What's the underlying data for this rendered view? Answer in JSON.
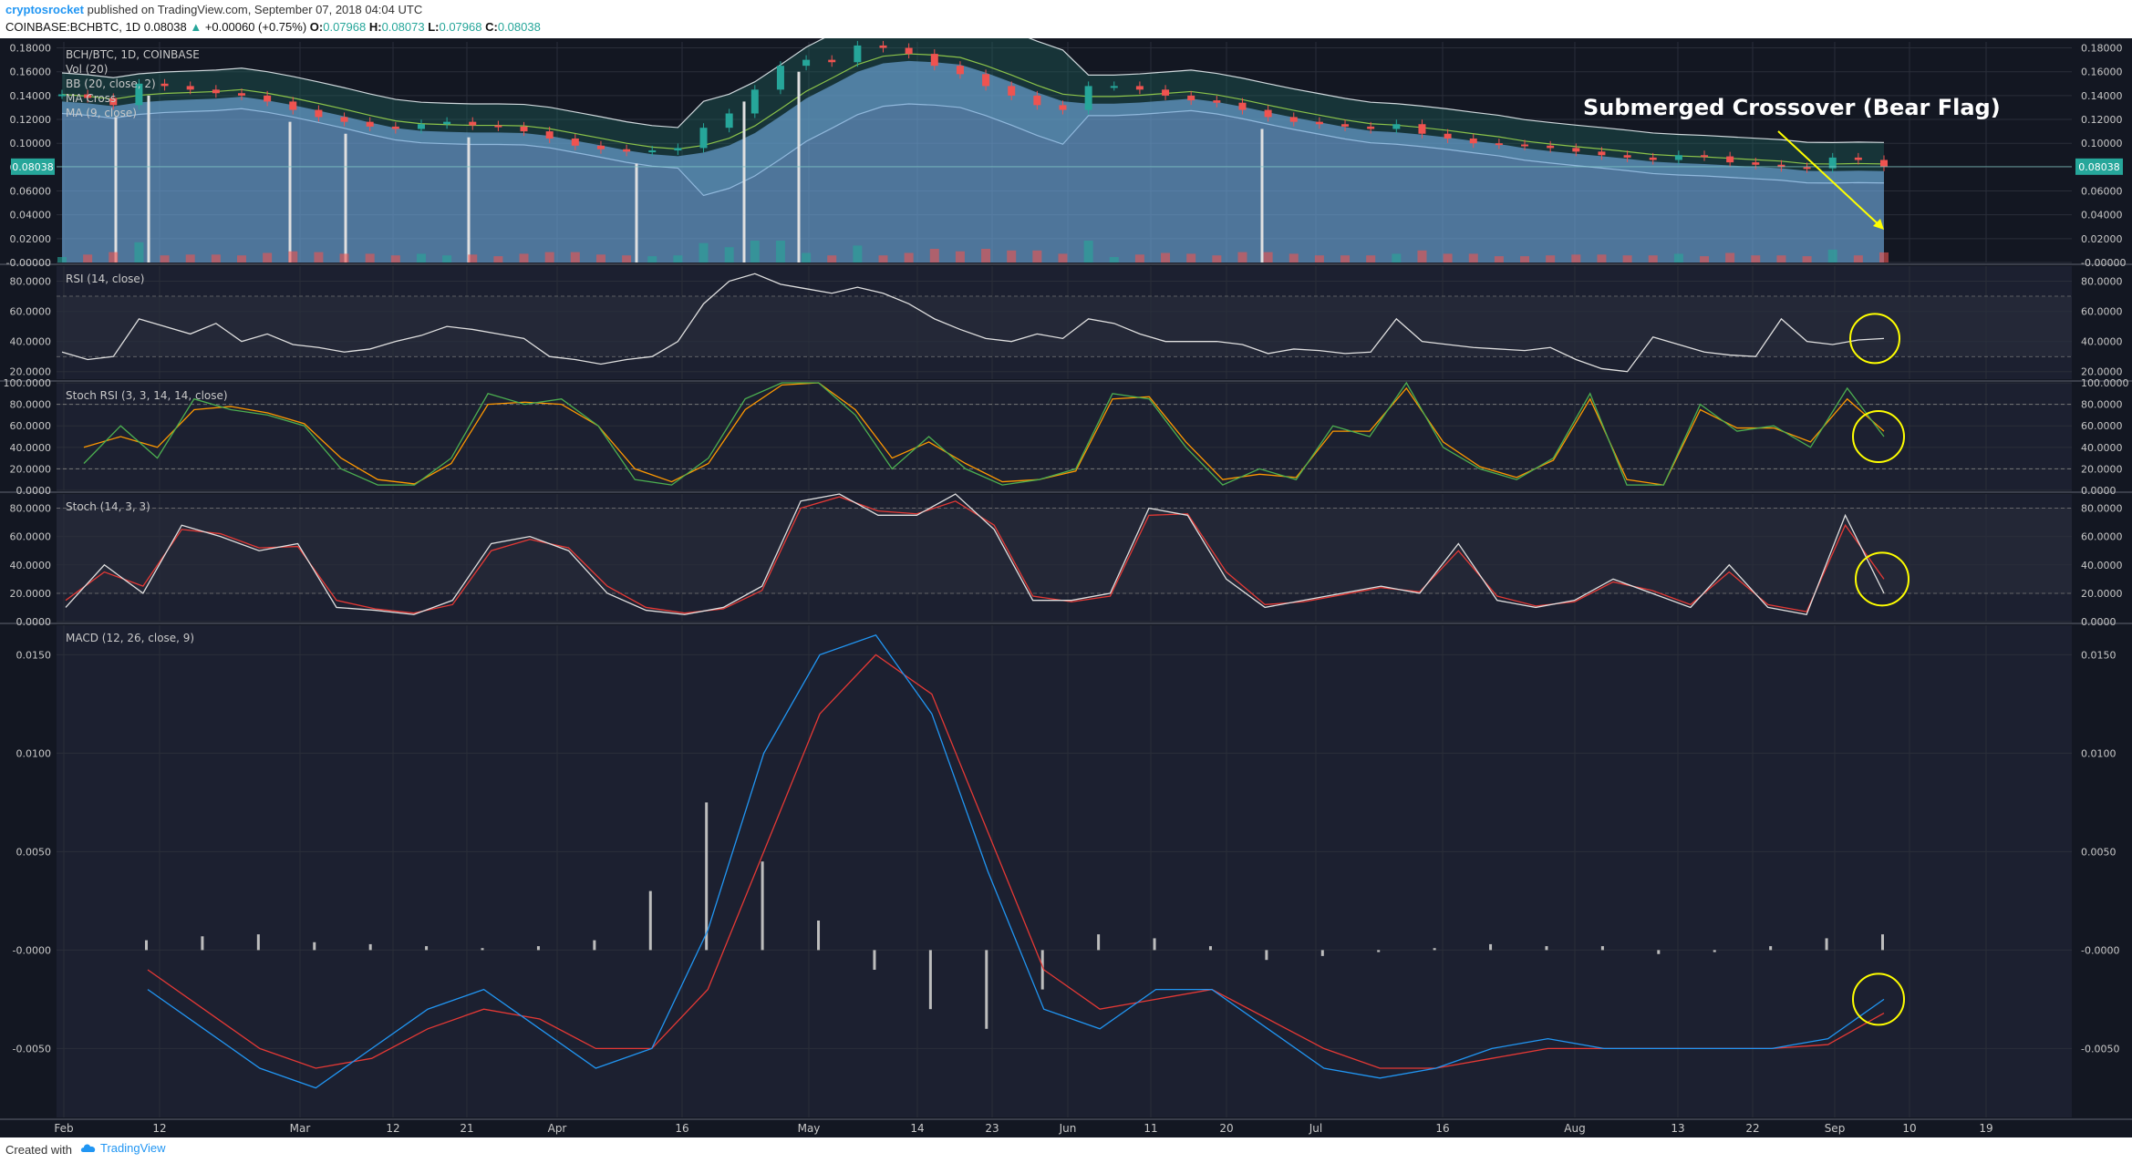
{
  "header": {
    "author": "cryptosrocket",
    "published_text": "published on TradingView.com, September 07, 2018 04:04 UTC",
    "symbol": "COINBASE:BCHBTC, 1D",
    "last": "0.08038",
    "change": "+0.00060 (+0.75%)",
    "o_label": "O:",
    "o_value": "0.07968",
    "h_label": "H:",
    "h_value": "0.08073",
    "l_label": "L:",
    "l_value": "0.07968",
    "c_label": "C:",
    "c_value": "0.08038"
  },
  "footer": {
    "created_with": "Created with",
    "brand": "TradingView"
  },
  "colors": {
    "background": "#131722",
    "pane_bg": "#1c2030",
    "grid": "#2a2e39",
    "text": "#c8c8c8",
    "up": "#26a69a",
    "down": "#ef5350",
    "bb_fill": "#6fa8dc",
    "rsi": "#e0e0e0",
    "stoch_k": "#4caf50",
    "stoch_d": "#ff9800",
    "macd": "#2196f3",
    "signal": "#e53935",
    "annotation": "#ffff00",
    "price_tag": "#26a69a"
  },
  "chart_data": [
    {
      "type": "candlestick",
      "title": "BCH/BTC, 1D, COINBASE",
      "legend": [
        "Vol (20)",
        "BB (20, close, 2)",
        "MA Cross",
        "MA (9, close)"
      ],
      "x_labels": [
        "Feb",
        "12",
        "Mar",
        "12",
        "21",
        "Apr",
        "16",
        "May",
        "14",
        "23",
        "Jun",
        "11",
        "20",
        "Jul",
        "16",
        "Aug",
        "13",
        "22",
        "Sep",
        "10",
        "19"
      ],
      "y_ticks": [
        "0.18000",
        "0.16000",
        "0.14000",
        "0.12000",
        "0.10000",
        "0.08000",
        "0.06000",
        "0.04000",
        "0.02000",
        "-0.00000"
      ],
      "ylim": [
        0,
        0.185
      ],
      "last_price": "0.08038",
      "close_series": [
        0.141,
        0.138,
        0.132,
        0.15,
        0.148,
        0.145,
        0.142,
        0.14,
        0.135,
        0.128,
        0.122,
        0.118,
        0.114,
        0.112,
        0.116,
        0.118,
        0.115,
        0.114,
        0.11,
        0.104,
        0.098,
        0.095,
        0.093,
        0.094,
        0.096,
        0.113,
        0.125,
        0.145,
        0.165,
        0.17,
        0.168,
        0.182,
        0.18,
        0.175,
        0.165,
        0.158,
        0.148,
        0.14,
        0.132,
        0.128,
        0.148,
        0.148,
        0.145,
        0.14,
        0.136,
        0.134,
        0.128,
        0.122,
        0.118,
        0.116,
        0.114,
        0.112,
        0.116,
        0.108,
        0.104,
        0.1,
        0.099,
        0.098,
        0.096,
        0.093,
        0.09,
        0.088,
        0.086,
        0.09,
        0.089,
        0.084,
        0.082,
        0.08,
        0.079,
        0.088,
        0.086,
        0.0804
      ],
      "volume_note": "Vol (20) histogram in bottom of price pane",
      "annotations": [
        {
          "text": "Submerged Crossover (Bear Flag)"
        }
      ]
    },
    {
      "type": "line",
      "title": "RSI (14, close)",
      "y_ticks": [
        "80.0000",
        "60.0000",
        "40.0000",
        "20.0000"
      ],
      "ylim": [
        15,
        90
      ],
      "bands": [
        70,
        30
      ],
      "series": [
        {
          "values": [
            33,
            28,
            30,
            55,
            50,
            45,
            52,
            40,
            45,
            38,
            36,
            33,
            35,
            40,
            44,
            50,
            48,
            45,
            42,
            30,
            28,
            25,
            28,
            30,
            40,
            65,
            80,
            85,
            78,
            75,
            72,
            76,
            72,
            65,
            55,
            48,
            42,
            40,
            45,
            42,
            55,
            52,
            45,
            40,
            40,
            40,
            38,
            32,
            35,
            34,
            32,
            33,
            55,
            40,
            38,
            36,
            35,
            34,
            36,
            28,
            22,
            20,
            43,
            38,
            33,
            31,
            30,
            55,
            40,
            38,
            41,
            42
          ]
        }
      ]
    },
    {
      "type": "line",
      "title": "Stoch RSI (3, 3, 14, 14, close)",
      "y_ticks": [
        "100.0000",
        "80.0000",
        "60.0000",
        "40.0000",
        "20.0000",
        "0.0000"
      ],
      "ylim": [
        0,
        100
      ],
      "bands": [
        80,
        20
      ],
      "series": [
        {
          "name": "K",
          "values": [
            25,
            60,
            30,
            85,
            75,
            70,
            60,
            20,
            5,
            5,
            30,
            90,
            80,
            85,
            60,
            10,
            5,
            30,
            85,
            100,
            100,
            70,
            20,
            50,
            20,
            5,
            10,
            20,
            90,
            85,
            40,
            5,
            20,
            10,
            60,
            50,
            100,
            40,
            20,
            10,
            30,
            90,
            5,
            5,
            80,
            55,
            60,
            40,
            95,
            50
          ]
        },
        {
          "name": "D",
          "values": [
            40,
            50,
            40,
            75,
            78,
            72,
            62,
            30,
            10,
            6,
            25,
            80,
            82,
            80,
            60,
            20,
            8,
            25,
            75,
            98,
            100,
            75,
            30,
            45,
            25,
            8,
            10,
            18,
            85,
            87,
            45,
            10,
            15,
            12,
            55,
            55,
            95,
            45,
            22,
            12,
            28,
            85,
            10,
            5,
            75,
            58,
            58,
            45,
            85,
            55
          ]
        }
      ]
    },
    {
      "type": "line",
      "title": "Stoch (14, 3, 3)",
      "y_ticks": [
        "80.0000",
        "60.0000",
        "40.0000",
        "20.0000",
        "0.0000"
      ],
      "ylim": [
        0,
        90
      ],
      "bands": [
        80,
        20
      ],
      "series": [
        {
          "name": "%K",
          "values": [
            10,
            40,
            20,
            68,
            60,
            50,
            55,
            10,
            8,
            5,
            15,
            55,
            60,
            50,
            20,
            8,
            5,
            10,
            25,
            85,
            90,
            75,
            75,
            90,
            65,
            15,
            15,
            20,
            80,
            75,
            30,
            10,
            15,
            20,
            25,
            20,
            55,
            15,
            10,
            15,
            30,
            20,
            10,
            40,
            10,
            5,
            75,
            20
          ]
        },
        {
          "name": "%D",
          "values": [
            15,
            35,
            25,
            65,
            62,
            52,
            53,
            15,
            9,
            6,
            12,
            50,
            58,
            52,
            25,
            10,
            6,
            9,
            22,
            80,
            88,
            78,
            76,
            85,
            68,
            18,
            14,
            18,
            75,
            76,
            35,
            12,
            14,
            19,
            24,
            21,
            50,
            18,
            11,
            14,
            28,
            22,
            12,
            35,
            12,
            7,
            68,
            30
          ]
        }
      ]
    },
    {
      "type": "line",
      "title": "MACD (12, 26, close, 9)",
      "y_ticks": [
        "0.0150",
        "0.0100",
        "0.0050",
        "-0.0000",
        "-0.0050"
      ],
      "ylim": [
        -0.0085,
        0.0165
      ],
      "series": [
        {
          "name": "MACD",
          "values": [
            -0.002,
            -0.004,
            -0.006,
            -0.007,
            -0.005,
            -0.003,
            -0.002,
            -0.004,
            -0.006,
            -0.005,
            0.001,
            0.01,
            0.015,
            0.016,
            0.012,
            0.004,
            -0.003,
            -0.004,
            -0.002,
            -0.002,
            -0.004,
            -0.006,
            -0.0065,
            -0.006,
            -0.005,
            -0.0045,
            -0.005,
            -0.005,
            -0.005,
            -0.005,
            -0.0045,
            -0.0025
          ]
        },
        {
          "name": "Signal",
          "values": [
            -0.001,
            -0.003,
            -0.005,
            -0.006,
            -0.0055,
            -0.004,
            -0.003,
            -0.0035,
            -0.005,
            -0.005,
            -0.002,
            0.005,
            0.012,
            0.015,
            0.013,
            0.006,
            -0.001,
            -0.003,
            -0.0025,
            -0.002,
            -0.0035,
            -0.005,
            -0.006,
            -0.006,
            -0.0055,
            -0.005,
            -0.005,
            -0.005,
            -0.005,
            -0.005,
            -0.0048,
            -0.0032
          ]
        }
      ],
      "histogram": [
        0.0005,
        0.0007,
        0.0008,
        0.0004,
        0.0003,
        0.0002,
        0.0001,
        0.0002,
        0.0005,
        0.003,
        0.0075,
        0.0045,
        0.0015,
        -0.001,
        -0.003,
        -0.004,
        -0.002,
        0.0008,
        0.0006,
        0.0002,
        -0.0005,
        -0.0003,
        -0.0001,
        0.0001,
        0.0003,
        0.0002,
        0.0002,
        -0.0002,
        -0.0001,
        0.0002,
        0.0006,
        0.0008
      ]
    }
  ]
}
